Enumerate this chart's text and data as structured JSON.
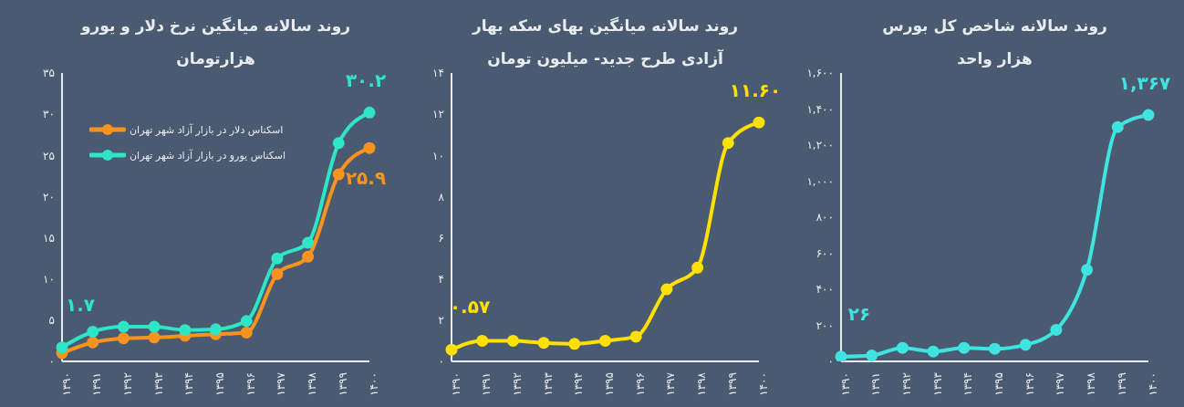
{
  "chart_data": [
    {
      "type": "line",
      "title": "روند سالانه میانگین نرخ دلار و یورو",
      "subtitle": "هزارتومان",
      "categories": [
        "۱۳۹۰",
        "۱۳۹۱",
        "۱۳۹۲",
        "۱۳۹۳",
        "۱۳۹۴",
        "۱۳۹۵",
        "۱۳۹۶",
        "۱۳۹۷",
        "۱۳۹۸",
        "۱۳۹۹",
        "۱۴۰۰"
      ],
      "series": [
        {
          "name": "اسکناس دلار در بازار آزاد شهر تهران",
          "color": "#f7931e",
          "values": [
            1.0,
            2.3,
            2.8,
            2.9,
            3.1,
            3.3,
            3.5,
            10.6,
            12.7,
            22.7,
            25.9
          ],
          "value_labels": [
            null,
            null,
            null,
            null,
            null,
            null,
            null,
            null,
            null,
            null,
            "۲۵.۹"
          ]
        },
        {
          "name": "اسکناس یورو در بازار آزاد شهر تهران",
          "color": "#2ee6c6",
          "values": [
            1.7,
            3.6,
            4.2,
            4.2,
            3.8,
            3.9,
            4.9,
            12.5,
            14.4,
            26.5,
            30.2
          ],
          "value_labels": [
            "۱.۷",
            null,
            null,
            null,
            null,
            null,
            null,
            null,
            null,
            null,
            "۳۰.۲"
          ]
        }
      ],
      "ylim": [
        0,
        35
      ],
      "yticks": [
        {
          "value": 0,
          "label": "۰"
        },
        {
          "value": 5,
          "label": "۵"
        },
        {
          "value": 10,
          "label": "۱۰"
        },
        {
          "value": 15,
          "label": "۱۵"
        },
        {
          "value": 20,
          "label": "۲۰"
        },
        {
          "value": 25,
          "label": "۲۵"
        },
        {
          "value": 30,
          "label": "۳۰"
        },
        {
          "value": 35,
          "label": "۳۵"
        }
      ],
      "grid": false,
      "legend": "top left",
      "marker": "circle",
      "line_style": "solid"
    },
    {
      "type": "line",
      "title": "روند سالانه میانگین بهای سکه بهار",
      "subtitle": "آزادی طرح جدید- میلیون تومان",
      "categories": [
        "۱۳۹۰",
        "۱۳۹۱",
        "۱۳۹۲",
        "۱۳۹۳",
        "۱۳۹۴",
        "۱۳۹۵",
        "۱۳۹۶",
        "۱۳۹۷",
        "۱۳۹۸",
        "۱۳۹۹",
        "۱۴۰۰"
      ],
      "series": [
        {
          "color": "#ffe100",
          "values": [
            0.57,
            1.0,
            1.0,
            0.9,
            0.85,
            1.0,
            1.2,
            3.5,
            4.55,
            10.6,
            11.6
          ],
          "value_labels": [
            "۰.۵۷",
            null,
            null,
            null,
            null,
            null,
            null,
            null,
            null,
            null,
            "۱۱.۶۰"
          ]
        }
      ],
      "ylim": [
        0,
        14
      ],
      "yticks": [
        {
          "value": 0,
          "label": "۰"
        },
        {
          "value": 2,
          "label": "۲"
        },
        {
          "value": 4,
          "label": "۴"
        },
        {
          "value": 6,
          "label": "۶"
        },
        {
          "value": 8,
          "label": "۸"
        },
        {
          "value": 10,
          "label": "۱۰"
        },
        {
          "value": 12,
          "label": "۱۲"
        },
        {
          "value": 14,
          "label": "۱۴"
        }
      ],
      "grid": false,
      "legend": false,
      "marker": "circle",
      "line_style": "solid"
    },
    {
      "type": "line",
      "title": "روند سالانه شاخص کل بورس",
      "subtitle": "هزار واحد",
      "categories": [
        "۱۳۹۰",
        "۱۳۹۱",
        "۱۳۹۲",
        "۱۳۹۳",
        "۱۳۹۴",
        "۱۳۹۵",
        "۱۳۹۶",
        "۱۳۹۷",
        "۱۳۹۸",
        "۱۳۹۹",
        "۱۴۰۰"
      ],
      "series": [
        {
          "color": "#3fe3e0",
          "values": [
            26,
            33,
            75,
            55,
            75,
            70,
            92,
            175,
            508,
            1300,
            1367
          ],
          "value_labels": [
            "۲۶",
            null,
            null,
            null,
            null,
            null,
            null,
            null,
            null,
            null,
            "۱,۳۶۷"
          ]
        }
      ],
      "ylim": [
        0,
        1600
      ],
      "yticks": [
        {
          "value": 0,
          "label": "۰"
        },
        {
          "value": 200,
          "label": "۲۰۰"
        },
        {
          "value": 400,
          "label": "۴۰۰"
        },
        {
          "value": 600,
          "label": "۶۰۰"
        },
        {
          "value": 800,
          "label": "۸۰۰"
        },
        {
          "value": 1000,
          "label": "۱,۰۰۰"
        },
        {
          "value": 1200,
          "label": "۱,۲۰۰"
        },
        {
          "value": 1400,
          "label": "۱,۴۰۰"
        },
        {
          "value": 1600,
          "label": "۱,۶۰۰"
        }
      ],
      "grid": false,
      "legend": false,
      "marker": "circle",
      "line_style": "solid"
    }
  ]
}
